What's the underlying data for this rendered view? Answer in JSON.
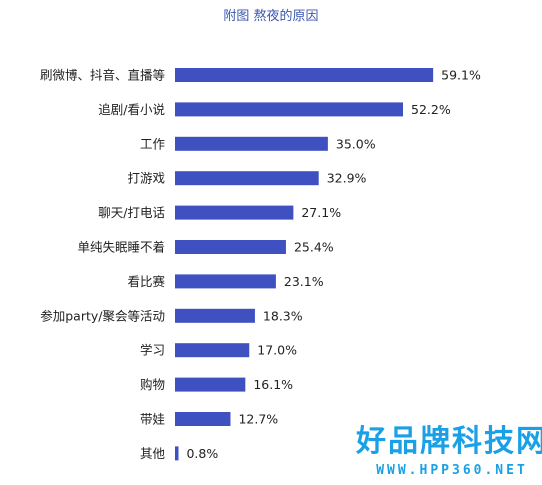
{
  "chart_data": {
    "type": "bar",
    "orientation": "horizontal",
    "title": "附图  熬夜的原因",
    "categories": [
      "刷微博、抖音、直播等",
      "追剧/看小说",
      "工作",
      "打游戏",
      "聊天/打电话",
      "单纯失眠睡不着",
      "看比赛",
      "参加party/聚会等活动",
      "学习",
      "购物",
      "带娃",
      "其他"
    ],
    "values": [
      59.1,
      52.2,
      35.0,
      32.9,
      27.1,
      25.4,
      23.1,
      18.3,
      17.0,
      16.1,
      12.7,
      0.8
    ],
    "value_labels": [
      "59.1%",
      "52.2%",
      "35.0%",
      "32.9%",
      "27.1%",
      "25.4%",
      "23.1%",
      "18.3%",
      "17.0%",
      "16.1%",
      "12.7%",
      "0.8%"
    ],
    "value_unit": "%",
    "grid": false,
    "legend": "none",
    "bar_color": "#3f51c0"
  },
  "watermark": {
    "title": "好品牌科技网",
    "url": "WWW.HPP360.NET",
    "color": "#1aa0e6"
  }
}
